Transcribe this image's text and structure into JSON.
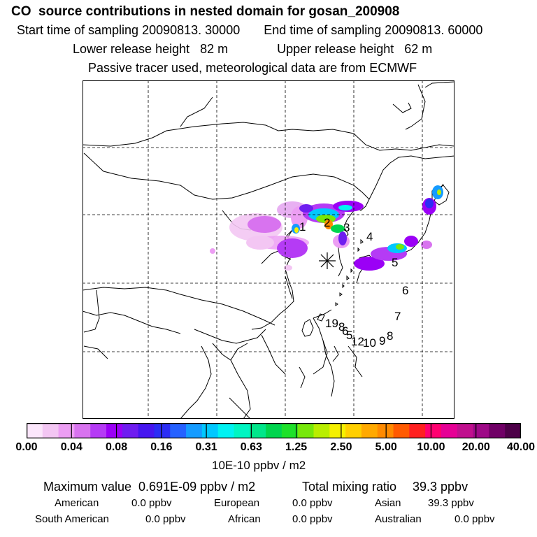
{
  "header": {
    "title": "CO  source contributions in nested domain for gosan_200908",
    "start_time": "Start time of sampling 20090813. 30000",
    "end_time": "End time of sampling 20090813. 60000",
    "lower_height": "Lower release height   82 m",
    "upper_height": "Upper release height   62 m",
    "tracer_note": "Passive tracer used, meteorological data are from ECMWF"
  },
  "map": {
    "receptor_marker": "asterisk-marker",
    "trajectory_labels": [
      "1",
      "2",
      "3",
      "4",
      "5",
      "6",
      "7",
      "8",
      "9",
      "10",
      "12",
      "19"
    ]
  },
  "colorbar": {
    "colors": [
      "#fbe6fb",
      "#f3c6f3",
      "#ec9ef3",
      "#d873ef",
      "#b53bf5",
      "#9b00f6",
      "#6f1df0",
      "#4616f0",
      "#2b2df5",
      "#2561ff",
      "#159bff",
      "#00c8ff",
      "#00f2f2",
      "#00f5c2",
      "#00e68a",
      "#00d54e",
      "#1ee12a",
      "#77e80a",
      "#b9ee00",
      "#f5f000",
      "#ffcf00",
      "#ffa900",
      "#ff8a00",
      "#ff5a00",
      "#ff2020",
      "#ff0070",
      "#e60095",
      "#c0108e",
      "#9e0a87",
      "#700066",
      "#4d0048"
    ],
    "ticks": [
      "0.00",
      "0.04",
      "0.08",
      "0.16",
      "0.31",
      "0.63",
      "1.25",
      "2.50",
      "5.00",
      "10.00",
      "20.00",
      "40.00"
    ],
    "unit": "10E-10 ppbv / m2"
  },
  "summary": {
    "max_value": "Maximum value  0.691E-09 ppbv / m2",
    "total_label": "Total mixing ratio",
    "total_value": "39.3 ppbv",
    "regions": [
      {
        "name": "American",
        "value": "0.0 ppbv"
      },
      {
        "name": "European",
        "value": "0.0 ppbv"
      },
      {
        "name": "Asian",
        "value": "39.3 ppbv"
      },
      {
        "name": "South American",
        "value": "0.0 ppbv"
      },
      {
        "name": "African",
        "value": "0.0 ppbv"
      },
      {
        "name": "Australian",
        "value": "0.0 ppbv"
      }
    ]
  }
}
